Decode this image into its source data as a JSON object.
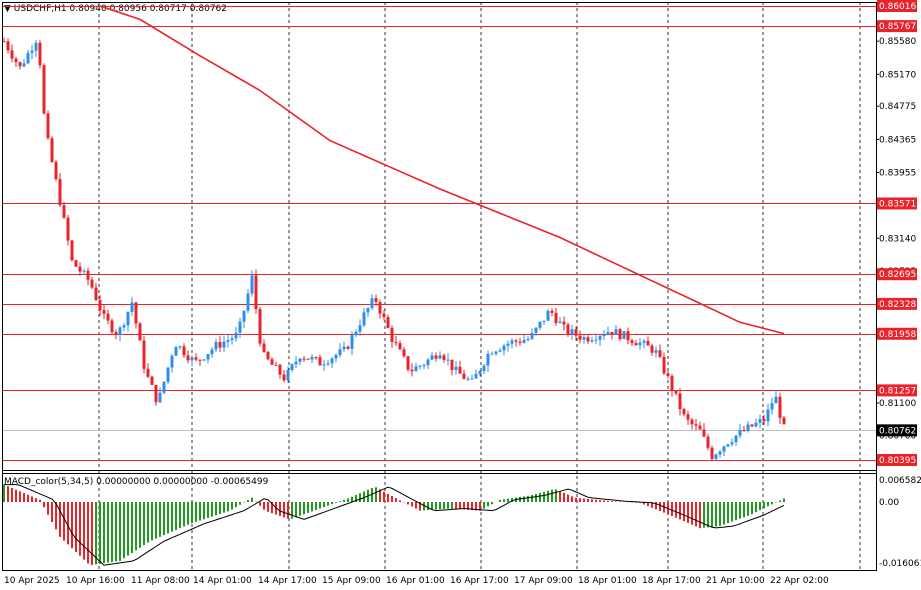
{
  "header": {
    "symbol": "USDCHF,H1",
    "open": "0.80940",
    "high": "0.80956",
    "low": "0.80717",
    "close": "0.80762"
  },
  "indicator": {
    "label": "MACD_color(5,34,5)",
    "values": "0.00000000 0.00000000 -0.00065499"
  },
  "colors": {
    "bull": "#2f8fe8",
    "bear": "#e8232a",
    "ma": "#e8232a",
    "hline": "#e8232a",
    "hist_up": "#1f9a1f",
    "hist_down": "#e8232a",
    "signal": "#000000",
    "grid": "#000000"
  },
  "price_axis": {
    "ticks": [
      "0.85580",
      "0.85170",
      "0.84775",
      "0.84365",
      "0.83955",
      "0.83140",
      "0.82735",
      "0.81925",
      "0.81100",
      "0.80700"
    ],
    "levels": [
      "0.86016",
      "0.85767",
      "0.83571",
      "0.82695",
      "0.82328",
      "0.81958",
      "0.81257",
      "0.80762",
      "0.80395"
    ],
    "current": "0.80762"
  },
  "macd_axis": {
    "ticks": [
      "0.0065829",
      "0.00",
      "-0.016061"
    ]
  },
  "time_axis": {
    "labels": [
      "10 Apr 2025",
      "10 Apr 16:00",
      "11 Apr 08:00",
      "14 Apr 01:00",
      "14 Apr 17:00",
      "15 Apr 09:00",
      "16 Apr 01:00",
      "16 Apr 17:00",
      "17 Apr 09:00",
      "18 Apr 01:00",
      "18 Apr 17:00",
      "21 Apr 10:00",
      "22 Apr 02:00"
    ]
  }
}
